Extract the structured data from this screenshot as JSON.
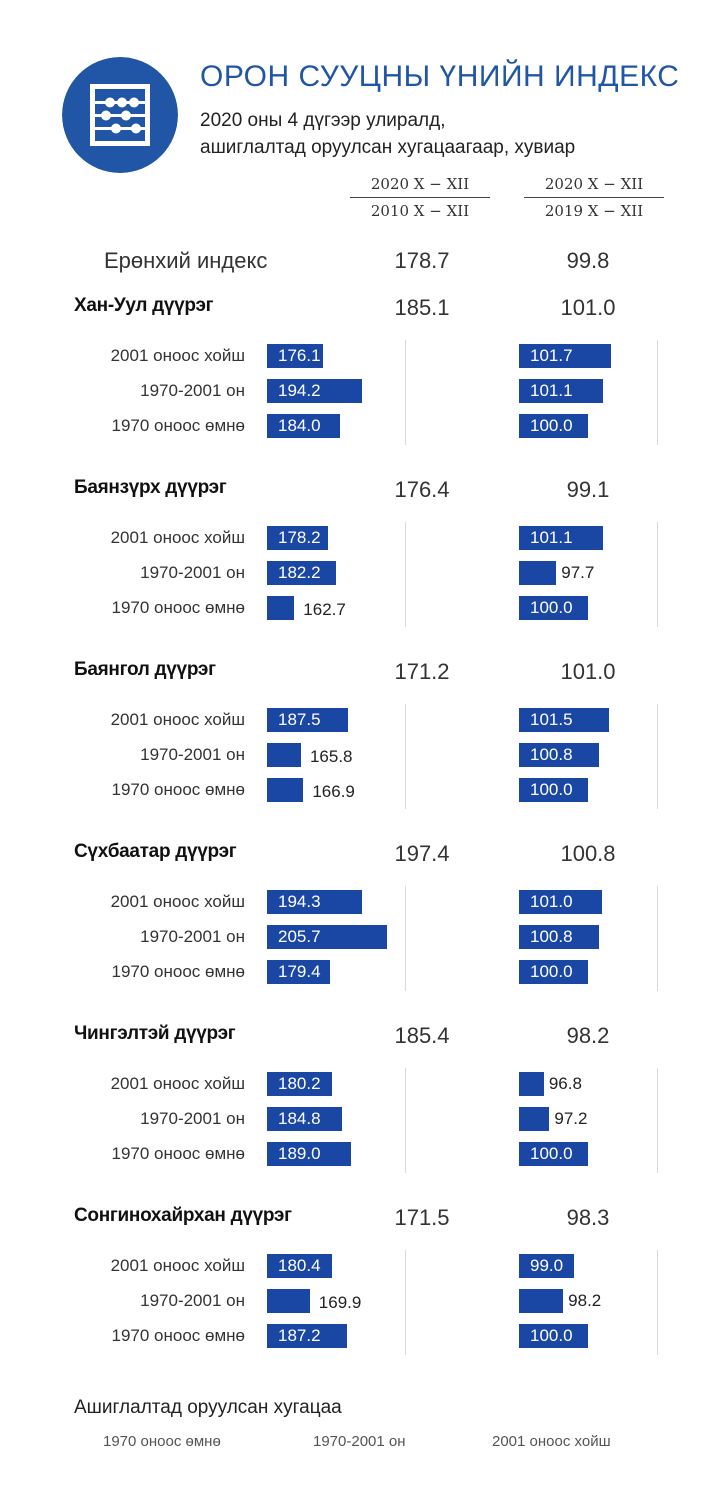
{
  "header": {
    "title": "ОРОН СУУЦНЫ ҮНИЙН ИНДЕКС",
    "subtitle_line1": "2020 оны 4 дүгээр улиралд,",
    "subtitle_line2": "ашиглалтад оруулсан хугацаагаар, хувиар",
    "logo_icon": "abacus-icon",
    "accent_color": "#2156a6"
  },
  "columns": [
    {
      "numerator": "2020 X − XII",
      "denominator": "2010 X − XII"
    },
    {
      "numerator": "2020 X − XII",
      "denominator": "2019 X − XII"
    }
  ],
  "general": {
    "label": "Ерөнхий индекс",
    "value_left": "178.7",
    "value_right": "99.8"
  },
  "legend": {
    "title": "Ашиглалтад оруулсан хугацаа",
    "items": [
      "1970 оноос өмнө",
      "1970-2001 он",
      "2001 оноос хойш"
    ]
  },
  "chart_data": {
    "type": "bar",
    "orientation": "horizontal",
    "bar_color": "#1a47a3",
    "categories": [
      "2001 оноос хойш",
      "1970-2001 он",
      "1970 оноос өмнө"
    ],
    "panels": [
      "2020 X − XII / 2010 X − XII",
      "2020 X − XII / 2019 X − XII"
    ],
    "districts": [
      {
        "name": "Хан-Уул дүүрэг",
        "total_left": "185.1",
        "total_right": "101.0",
        "left": [
          176.1,
          194.2,
          184.0
        ],
        "right": [
          101.7,
          101.1,
          100.0
        ]
      },
      {
        "name": "Баянзүрх дүүрэг",
        "total_left": "176.4",
        "total_right": "99.1",
        "left": [
          178.2,
          182.2,
          162.7
        ],
        "right": [
          101.1,
          97.7,
          100.0
        ]
      },
      {
        "name": "Баянгол дүүрэг",
        "total_left": "171.2",
        "total_right": "101.0",
        "left": [
          187.5,
          165.8,
          166.9
        ],
        "right": [
          101.5,
          100.8,
          100.0
        ]
      },
      {
        "name": "Сүхбаатар дүүрэг",
        "total_left": "197.4",
        "total_right": "100.8",
        "left": [
          194.3,
          205.7,
          179.4
        ],
        "right": [
          101.0,
          100.8,
          100.0
        ]
      },
      {
        "name": "Чингэлтэй дүүрэг",
        "total_left": "185.4",
        "total_right": "98.2",
        "left": [
          180.2,
          184.8,
          189.0
        ],
        "right": [
          96.8,
          97.2,
          100.0
        ]
      },
      {
        "name": "Сонгинохайрхан дүүрэг",
        "total_left": "171.5",
        "total_right": "98.3",
        "left": [
          180.4,
          169.9,
          187.2
        ],
        "right": [
          99.0,
          98.2,
          100.0
        ]
      }
    ]
  }
}
